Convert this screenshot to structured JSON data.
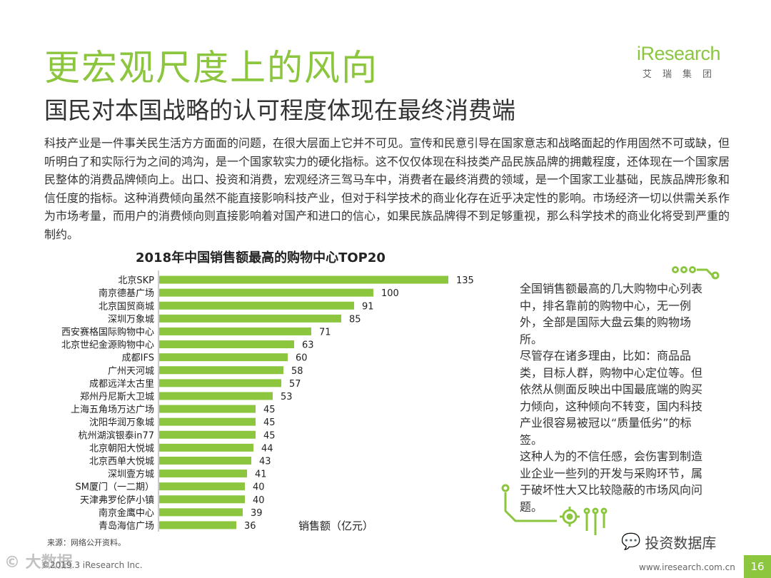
{
  "header": {
    "title": "更宏观尺度上的风向",
    "subtitle": "国民对本国战略的认可程度体现在最终消费端"
  },
  "logo": {
    "brand": "iResearch",
    "tagline": "艾瑞集团"
  },
  "body_text": "科技产业是一件事关民生活方方面面的问题，在很大层面上它并不可见。宣传和民意引导在国家意志和战略面起的作用固然不可或缺，但听明白了和实际行为之间的鸿沟，是一个国家软实力的硬化指标。这不仅仅体现在科技类产品民族品牌的拥戴程度，还体现在一个国家居民整体的消费品牌倾向上。出口、投资和消费，宏观经济三驾马车中，消费者在最终消费的领域，是一个国家工业基础，民族品牌形象和信任度的指标。这种消费倾向虽然不能直接影响科技产业，但对于科学技术的商业化存在近乎决定性的影响。市场经济一切以供需关系作为市场考量，而用户的消费倾向则直接影响着对国产和进口的信心，如果民族品牌得不到足够重视，那么科学技术的商业化将受到严重的制约。",
  "chart_data": {
    "type": "bar",
    "orientation": "horizontal",
    "title": "2018年中国销售额最高的购物中心TOP20",
    "xlabel": "销售额（亿元）",
    "ylabel": "",
    "categories": [
      "北京SKP",
      "南京德基广场",
      "北京国贸商城",
      "深圳万象城",
      "西安赛格国际购物中心",
      "北京世纪金源购物中心",
      "成都IFS",
      "广州天河城",
      "成都远洋太古里",
      "郑州丹尼斯大卫城",
      "上海五角场万达广场",
      "沈阳华润万象城",
      "杭州湖滨银泰in77",
      "北京朝阳大悦城",
      "北京西单大悦城",
      "深圳壹方城",
      "SM厦门（一二期）",
      "天津弗罗伦萨小镇",
      "南京金鹰中心",
      "青岛海信广场"
    ],
    "values": [
      135,
      100,
      91,
      85,
      71,
      63,
      60,
      58,
      57,
      53,
      45,
      45,
      45,
      44,
      43,
      41,
      40,
      40,
      39,
      36
    ],
    "xlim": [
      0,
      135
    ],
    "bar_color": "#8cc63f",
    "grid": false
  },
  "side_note": {
    "p1": "全国销售额最高的几大购物中心列表中，排名靠前的购物中心，无一例外，全部是国际大盘云集的购物场所。",
    "p2": "尽管存在诸多理由，比如：商品品类，目标人群，购物中心定位等。但依然从侧面反映出中国最底端的购买力倾向，这种倾向不转变，国内科技产业很容易被冠以“质量低劣”的标签。",
    "p3": "这种人为的不信任感，会伤害到制造业企业一些列的开发与采购环节，属于破坏性大又比较隐蔽的市场风向问题。"
  },
  "source": "来源：网络公开资料。",
  "footer": {
    "wechat_label": "投资数据库",
    "watermark": "© 大数据",
    "copyright": "©2019.3 iResearch Inc.",
    "website": "www.iresearch.com.cn",
    "page_number": "16"
  },
  "colors": {
    "accent": "#8cc63f",
    "text": "#333333"
  }
}
